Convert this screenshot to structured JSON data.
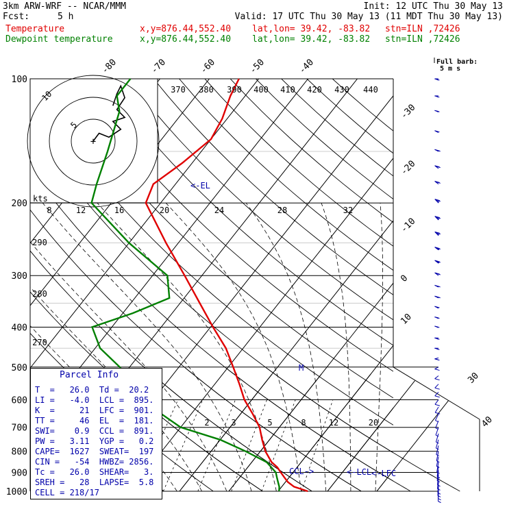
{
  "header": {
    "model": "3km ARW-WRF -- NCAR/MMM",
    "init": "Init: 12 UTC Thu 30 May 13",
    "fcst_label": "Fcst:",
    "fcst_value": "5 h",
    "valid": "Valid: 17 UTC Thu 30 May 13 (11 MDT Thu 30 May 13)",
    "temp_label": "Temperature",
    "dew_label": "Dewpoint temperature",
    "xy": "x,y=876.44,552.40",
    "latlon": "lat,lon= 39.42, -83.82",
    "stn": "stn=ILN ,72426",
    "colors": {
      "temperature": "#e00000",
      "dewpoint": "#008000",
      "annotation": "#0000aa"
    }
  },
  "chart_data": {
    "type": "line",
    "subtype": "skew-T log-P sounding",
    "pressure_ticks": [
      100,
      200,
      300,
      400,
      500,
      600,
      700,
      800,
      900,
      1000
    ],
    "isotherm_labels": [
      "-80",
      "-70",
      "-60",
      "-50",
      "-40",
      "-30",
      "-20",
      "-10",
      "0",
      "10",
      "20",
      "30",
      "40"
    ],
    "theta_labels": [
      "370",
      "380",
      "390",
      "400",
      "410",
      "420",
      "430",
      "440"
    ],
    "theta_low_labels": [
      "290",
      "280",
      "270"
    ],
    "mixing_ratio_labels": [
      "2",
      "3",
      "5",
      "8",
      "12",
      "20"
    ],
    "hodograph": {
      "speed_label": "kts",
      "speed_ticks": [
        "8",
        "12",
        "16",
        "20",
        "24",
        "28",
        "32"
      ],
      "rings": [
        "5",
        "10"
      ],
      "trace": [
        [
          0,
          0
        ],
        [
          3,
          4
        ],
        [
          8,
          2
        ],
        [
          14,
          6
        ],
        [
          10,
          10
        ],
        [
          16,
          12
        ],
        [
          12,
          16
        ],
        [
          16,
          22
        ],
        [
          14,
          28
        ],
        [
          12,
          24
        ],
        [
          10,
          18
        ]
      ]
    },
    "series": [
      {
        "name": "Temperature",
        "color": "#e00000",
        "points": [
          [
            1000,
            26.0
          ],
          [
            975,
            22.5
          ],
          [
            950,
            20.5
          ],
          [
            925,
            19.0
          ],
          [
            900,
            17.5
          ],
          [
            875,
            16.0
          ],
          [
            850,
            14.0
          ],
          [
            800,
            11.0
          ],
          [
            750,
            8.5
          ],
          [
            700,
            6.0
          ],
          [
            650,
            2.5
          ],
          [
            600,
            -1.5
          ],
          [
            550,
            -5.0
          ],
          [
            500,
            -9.0
          ],
          [
            450,
            -13.5
          ],
          [
            400,
            -19.5
          ],
          [
            350,
            -26.0
          ],
          [
            300,
            -33.5
          ],
          [
            250,
            -42.5
          ],
          [
            200,
            -53.0
          ],
          [
            180,
            -54.5
          ],
          [
            160,
            -52.0
          ],
          [
            140,
            -50.0
          ],
          [
            125,
            -51.0
          ],
          [
            110,
            -53.0
          ],
          [
            100,
            -54.0
          ]
        ]
      },
      {
        "name": "Dewpoint temperature",
        "color": "#008000",
        "points": [
          [
            1000,
            20.2
          ],
          [
            975,
            19.5
          ],
          [
            950,
            18.5
          ],
          [
            925,
            17.5
          ],
          [
            900,
            16.5
          ],
          [
            850,
            13.0
          ],
          [
            800,
            7.0
          ],
          [
            750,
            0.0
          ],
          [
            700,
            -10.0
          ],
          [
            650,
            -16.0
          ],
          [
            600,
            -21.0
          ],
          [
            550,
            -26.5
          ],
          [
            500,
            -32.0
          ],
          [
            450,
            -39.0
          ],
          [
            400,
            -44.0
          ],
          [
            370,
            -38.0
          ],
          [
            340,
            -33.0
          ],
          [
            300,
            -37.0
          ],
          [
            250,
            -50.0
          ],
          [
            200,
            -64.0
          ],
          [
            180,
            -66.0
          ],
          [
            150,
            -69.0
          ],
          [
            120,
            -73.0
          ],
          [
            110,
            -76.0
          ],
          [
            100,
            -76.0
          ]
        ]
      }
    ],
    "annotations": [
      {
        "label": "<-EL",
        "pressure": 181
      },
      {
        "label": "M",
        "pressure": 500
      },
      {
        "label": "CCL->",
        "pressure": 891
      },
      {
        "label": "<-LCL",
        "pressure": 895
      },
      {
        "label": "<-LFC",
        "pressure": 901
      }
    ]
  },
  "wind_barbs": {
    "label_line1": "Full barb:",
    "label_line2": "5 m s",
    "items": [
      {
        "p": 100,
        "dir": 270,
        "spd": 7
      },
      {
        "p": 110,
        "dir": 270,
        "spd": 7
      },
      {
        "p": 120,
        "dir": 275,
        "spd": 8
      },
      {
        "p": 135,
        "dir": 280,
        "spd": 9
      },
      {
        "p": 150,
        "dir": 280,
        "spd": 10
      },
      {
        "p": 165,
        "dir": 285,
        "spd": 10
      },
      {
        "p": 180,
        "dir": 285,
        "spd": 11
      },
      {
        "p": 200,
        "dir": 290,
        "spd": 12
      },
      {
        "p": 220,
        "dir": 290,
        "spd": 13
      },
      {
        "p": 240,
        "dir": 290,
        "spd": 13
      },
      {
        "p": 260,
        "dir": 285,
        "spd": 12
      },
      {
        "p": 280,
        "dir": 285,
        "spd": 12
      },
      {
        "p": 300,
        "dir": 285,
        "spd": 11
      },
      {
        "p": 320,
        "dir": 280,
        "spd": 10
      },
      {
        "p": 340,
        "dir": 280,
        "spd": 10
      },
      {
        "p": 360,
        "dir": 280,
        "spd": 9
      },
      {
        "p": 380,
        "dir": 275,
        "spd": 9
      },
      {
        "p": 400,
        "dir": 275,
        "spd": 8
      },
      {
        "p": 425,
        "dir": 270,
        "spd": 8
      },
      {
        "p": 450,
        "dir": 270,
        "spd": 7
      },
      {
        "p": 475,
        "dir": 265,
        "spd": 7
      },
      {
        "p": 500,
        "dir": 260,
        "spd": 6
      },
      {
        "p": 525,
        "dir": 255,
        "spd": 6
      },
      {
        "p": 550,
        "dir": 250,
        "spd": 6
      },
      {
        "p": 575,
        "dir": 250,
        "spd": 5
      },
      {
        "p": 600,
        "dir": 245,
        "spd": 5
      },
      {
        "p": 625,
        "dir": 240,
        "spd": 5
      },
      {
        "p": 650,
        "dir": 235,
        "spd": 4
      },
      {
        "p": 675,
        "dir": 230,
        "spd": 4
      },
      {
        "p": 700,
        "dir": 225,
        "spd": 4
      },
      {
        "p": 725,
        "dir": 220,
        "spd": 3
      },
      {
        "p": 750,
        "dir": 220,
        "spd": 3
      },
      {
        "p": 775,
        "dir": 215,
        "spd": 3
      },
      {
        "p": 800,
        "dir": 210,
        "spd": 3
      },
      {
        "p": 825,
        "dir": 210,
        "spd": 3
      },
      {
        "p": 850,
        "dir": 205,
        "spd": 3
      },
      {
        "p": 870,
        "dir": 200,
        "spd": 3
      },
      {
        "p": 890,
        "dir": 200,
        "spd": 3
      },
      {
        "p": 910,
        "dir": 195,
        "spd": 3
      },
      {
        "p": 930,
        "dir": 195,
        "spd": 2
      },
      {
        "p": 950,
        "dir": 190,
        "spd": 2
      },
      {
        "p": 965,
        "dir": 190,
        "spd": 2
      },
      {
        "p": 980,
        "dir": 185,
        "spd": 2
      },
      {
        "p": 995,
        "dir": 185,
        "spd": 2
      }
    ]
  },
  "parcel_info": {
    "title": "Parcel Info",
    "rows": [
      "T  =   26.0  Td =  20.2",
      "LI =   -4.0  LCL =  895.",
      "K  =     21  LFC =  901.",
      "TT =     46  EL  =  181.",
      "SWI=    0.9  CCL =  891.",
      "PW =   3.11  YGP =   0.2",
      "CAPE=  1627  SWEAT=  197",
      "CIN =   -54  HWBZ= 2856.",
      "Tc =   26.0  SHEAR=   3.",
      "SREH =   28  LAPSE=  5.8",
      "CELL = 218/17"
    ]
  }
}
